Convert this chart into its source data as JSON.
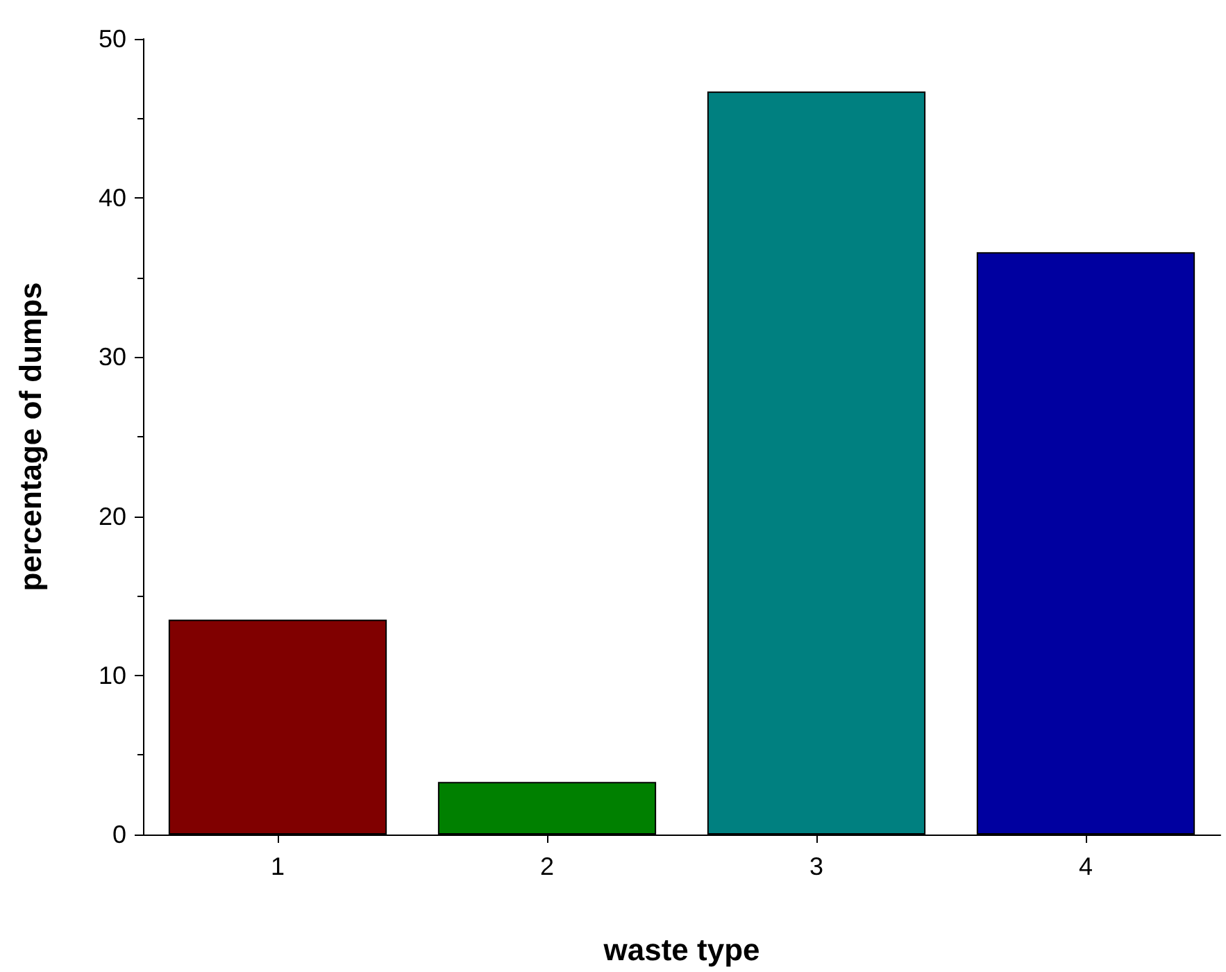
{
  "chart_data": {
    "type": "bar",
    "xlabel": "waste type",
    "ylabel": "percentage of dumps",
    "categories": [
      "1",
      "2",
      "3",
      "4"
    ],
    "values": [
      13.5,
      3.3,
      46.7,
      36.6
    ],
    "colors": [
      "#800000",
      "#008000",
      "#008080",
      "#0000a0"
    ],
    "ylim": [
      0,
      50
    ],
    "yticks": [
      0,
      10,
      20,
      30,
      40,
      50
    ]
  }
}
